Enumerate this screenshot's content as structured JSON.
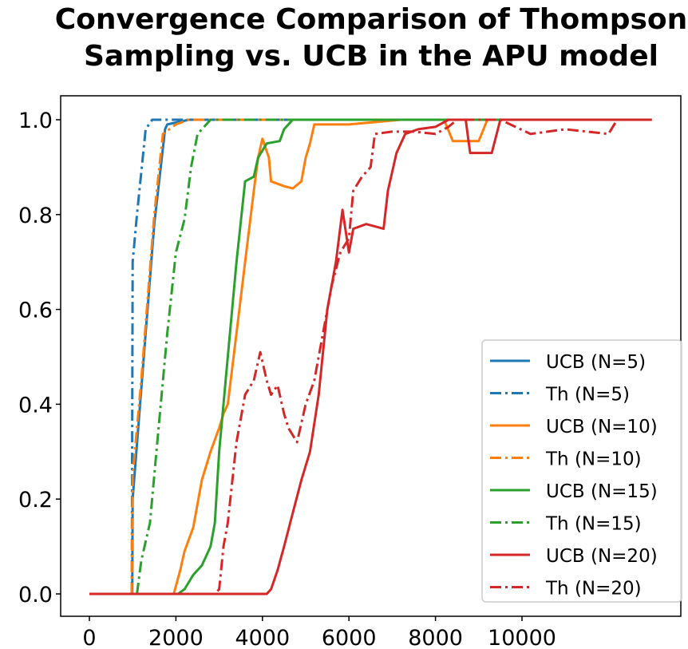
{
  "chart_data": {
    "type": "line",
    "title": "Convergence Comparison of Thompson Sampling vs. UCB in the APU model",
    "title_lines": [
      "Convergence Comparison of Thompson",
      "Sampling vs. UCB in the APU model"
    ],
    "xlabel": "",
    "ylabel": "",
    "xlim": [
      -600,
      13600
    ],
    "ylim": [
      -0.05,
      1.05
    ],
    "xticks": [
      0,
      2000,
      4000,
      6000,
      8000,
      10000
    ],
    "xtick_labels": [
      "0",
      "2000",
      "4000",
      "6000",
      "8000",
      "10000"
    ],
    "yticks": [
      0.0,
      0.2,
      0.4,
      0.6,
      0.8,
      1.0
    ],
    "ytick_labels": [
      "0.0",
      "0.2",
      "0.4",
      "0.6",
      "0.8",
      "1.0"
    ],
    "grid": false,
    "legend_position": "lower-right",
    "series": [
      {
        "name": "UCB (N=5)",
        "color": "#1f77b4",
        "style": "solid",
        "points": [
          [
            0,
            0
          ],
          [
            990,
            0
          ],
          [
            1000,
            0.2
          ],
          [
            1300,
            0.55
          ],
          [
            1500,
            0.78
          ],
          [
            1750,
            0.98
          ],
          [
            1800,
            0.99
          ],
          [
            2300,
            1.0
          ],
          [
            13000,
            1.0
          ]
        ]
      },
      {
        "name": "Th (N=5)",
        "color": "#1f77b4",
        "style": "dashdot",
        "points": [
          [
            0,
            0
          ],
          [
            980,
            0
          ],
          [
            1000,
            0.7
          ],
          [
            1100,
            0.8
          ],
          [
            1300,
            0.98
          ],
          [
            1450,
            1.0
          ],
          [
            2300,
            1.0
          ]
        ]
      },
      {
        "name": "UCB (N=10)",
        "color": "#ff7f0e",
        "style": "solid",
        "points": [
          [
            1950,
            0
          ],
          [
            2100,
            0.05
          ],
          [
            2200,
            0.09
          ],
          [
            2400,
            0.14
          ],
          [
            2600,
            0.24
          ],
          [
            2800,
            0.3
          ],
          [
            3000,
            0.35
          ],
          [
            3100,
            0.38
          ],
          [
            3200,
            0.4
          ],
          [
            3400,
            0.55
          ],
          [
            3600,
            0.7
          ],
          [
            3800,
            0.85
          ],
          [
            3900,
            0.92
          ],
          [
            4000,
            0.96
          ],
          [
            4150,
            0.92
          ],
          [
            4200,
            0.87
          ],
          [
            4500,
            0.86
          ],
          [
            4700,
            0.855
          ],
          [
            4900,
            0.87
          ],
          [
            5000,
            0.92
          ],
          [
            5100,
            0.95
          ],
          [
            5200,
            0.99
          ],
          [
            6000,
            0.99
          ],
          [
            7200,
            1.0
          ],
          [
            8200,
            1.0
          ],
          [
            8400,
            0.955
          ],
          [
            9000,
            0.955
          ],
          [
            9200,
            1.0
          ],
          [
            13000,
            1.0
          ]
        ]
      },
      {
        "name": "Th (N=10)",
        "color": "#ff7f0e",
        "style": "dashdot",
        "points": [
          [
            980,
            0
          ],
          [
            1000,
            0.25
          ],
          [
            1200,
            0.45
          ],
          [
            1500,
            0.8
          ],
          [
            1700,
            0.97
          ],
          [
            2000,
            0.99
          ],
          [
            2300,
            1.0
          ],
          [
            4500,
            1.0
          ]
        ]
      },
      {
        "name": "UCB (N=15)",
        "color": "#2ca02c",
        "style": "solid",
        "points": [
          [
            2050,
            0
          ],
          [
            2200,
            0.01
          ],
          [
            2400,
            0.04
          ],
          [
            2600,
            0.06
          ],
          [
            2800,
            0.1
          ],
          [
            2900,
            0.15
          ],
          [
            3000,
            0.3
          ],
          [
            3200,
            0.5
          ],
          [
            3400,
            0.7
          ],
          [
            3600,
            0.87
          ],
          [
            3800,
            0.88
          ],
          [
            3900,
            0.92
          ],
          [
            4100,
            0.95
          ],
          [
            4400,
            0.955
          ],
          [
            4500,
            0.98
          ],
          [
            4700,
            1.0
          ],
          [
            13000,
            1.0
          ]
        ]
      },
      {
        "name": "Th (N=15)",
        "color": "#2ca02c",
        "style": "dashdot",
        "points": [
          [
            1100,
            0
          ],
          [
            1200,
            0.07
          ],
          [
            1400,
            0.15
          ],
          [
            1600,
            0.35
          ],
          [
            1800,
            0.55
          ],
          [
            2000,
            0.72
          ],
          [
            2200,
            0.79
          ],
          [
            2350,
            0.9
          ],
          [
            2500,
            0.97
          ],
          [
            2800,
            1.0
          ],
          [
            7500,
            1.0
          ]
        ]
      },
      {
        "name": "UCB (N=20)",
        "color": "#d62728",
        "style": "solid",
        "points": [
          [
            0,
            0
          ],
          [
            4100,
            0
          ],
          [
            4200,
            0.01
          ],
          [
            4350,
            0.05
          ],
          [
            4500,
            0.1
          ],
          [
            4700,
            0.17
          ],
          [
            4900,
            0.24
          ],
          [
            5100,
            0.3
          ],
          [
            5300,
            0.42
          ],
          [
            5500,
            0.6
          ],
          [
            5700,
            0.7
          ],
          [
            5850,
            0.81
          ],
          [
            6000,
            0.72
          ],
          [
            6100,
            0.77
          ],
          [
            6400,
            0.78
          ],
          [
            6800,
            0.77
          ],
          [
            6900,
            0.85
          ],
          [
            7100,
            0.93
          ],
          [
            7300,
            0.97
          ],
          [
            7600,
            0.98
          ],
          [
            8000,
            0.985
          ],
          [
            8300,
            1.0
          ],
          [
            8700,
            1.0
          ],
          [
            8800,
            0.93
          ],
          [
            9300,
            0.93
          ],
          [
            9500,
            1.0
          ],
          [
            13000,
            1.0
          ]
        ]
      },
      {
        "name": "Th (N=20)",
        "color": "#d62728",
        "style": "dashdot",
        "points": [
          [
            0,
            0
          ],
          [
            2900,
            0
          ],
          [
            3000,
            0.01
          ],
          [
            3100,
            0.1
          ],
          [
            3200,
            0.15
          ],
          [
            3400,
            0.32
          ],
          [
            3600,
            0.42
          ],
          [
            3800,
            0.45
          ],
          [
            3950,
            0.51
          ],
          [
            4100,
            0.45
          ],
          [
            4200,
            0.42
          ],
          [
            4350,
            0.44
          ],
          [
            4500,
            0.38
          ],
          [
            4600,
            0.35
          ],
          [
            4800,
            0.32
          ],
          [
            5000,
            0.4
          ],
          [
            5200,
            0.45
          ],
          [
            5400,
            0.55
          ],
          [
            5600,
            0.65
          ],
          [
            5800,
            0.72
          ],
          [
            6000,
            0.75
          ],
          [
            6100,
            0.85
          ],
          [
            6300,
            0.88
          ],
          [
            6500,
            0.9
          ],
          [
            6600,
            0.97
          ],
          [
            7000,
            0.975
          ],
          [
            7500,
            0.975
          ],
          [
            8000,
            0.97
          ],
          [
            8300,
            0.985
          ],
          [
            8500,
            1.0
          ],
          [
            9500,
            1.0
          ],
          [
            10200,
            0.97
          ],
          [
            11000,
            0.98
          ],
          [
            12000,
            0.97
          ],
          [
            12200,
            1.0
          ],
          [
            13000,
            1.0
          ]
        ]
      }
    ]
  }
}
